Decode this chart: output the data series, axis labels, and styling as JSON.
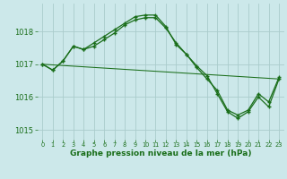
{
  "background_color": "#cce8ea",
  "grid_color": "#aacccc",
  "line_color": "#1a6e1a",
  "xlabel": "Graphe pression niveau de la mer (hPa)",
  "ylim": [
    1014.7,
    1018.85
  ],
  "yticks": [
    1015,
    1016,
    1017,
    1018
  ],
  "xticks": [
    0,
    1,
    2,
    3,
    4,
    5,
    6,
    7,
    8,
    9,
    10,
    11,
    12,
    13,
    14,
    15,
    16,
    17,
    18,
    19,
    20,
    21,
    22,
    23
  ],
  "series1": [
    1017.0,
    1016.82,
    1017.1,
    1017.55,
    1017.45,
    1017.55,
    1017.75,
    1017.95,
    1018.2,
    1018.35,
    1018.42,
    1018.42,
    1018.1,
    1017.65,
    1017.3,
    1016.95,
    1016.65,
    1016.1,
    1015.55,
    1015.35,
    1015.55,
    1016.0,
    1015.7,
    1016.55
  ],
  "series2": [
    1017.0,
    1016.82,
    1017.1,
    1017.55,
    1017.45,
    1017.65,
    1017.85,
    1018.05,
    1018.25,
    1018.45,
    1018.5,
    1018.5,
    1018.15,
    1017.6,
    1017.3,
    1016.9,
    1016.55,
    1016.2,
    1015.6,
    1015.45,
    1015.6,
    1016.1,
    1015.85,
    1016.6
  ],
  "series3_x": [
    0,
    23
  ],
  "series3_y": [
    1017.0,
    1016.55
  ]
}
